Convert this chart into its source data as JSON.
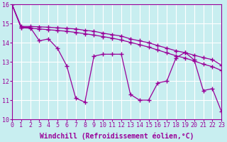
{
  "title": "",
  "xlabel": "Windchill (Refroidissement éolien,°C)",
  "ylabel": "",
  "bg_color": "#c8eef0",
  "grid_color": "#ffffff",
  "line_color": "#990099",
  "xlim": [
    0,
    23
  ],
  "ylim": [
    10,
    16
  ],
  "yticks": [
    10,
    11,
    12,
    13,
    14,
    15,
    16
  ],
  "xticks": [
    0,
    1,
    2,
    3,
    4,
    5,
    6,
    7,
    8,
    9,
    10,
    11,
    12,
    13,
    14,
    15,
    16,
    17,
    18,
    19,
    20,
    21,
    22,
    23
  ],
  "series1_x": [
    0,
    1,
    2,
    3,
    4,
    5,
    6,
    7,
    8,
    9,
    10,
    11,
    12,
    13,
    14,
    15,
    16,
    17,
    18,
    19,
    20,
    21,
    22,
    23
  ],
  "series1_y": [
    16.0,
    14.8,
    14.8,
    14.1,
    14.2,
    13.7,
    12.8,
    11.1,
    10.9,
    13.3,
    13.4,
    13.4,
    13.4,
    11.3,
    11.0,
    11.0,
    11.9,
    12.0,
    13.2,
    13.5,
    13.1,
    11.5,
    11.6,
    10.4
  ],
  "series2_x": [
    0,
    1,
    2,
    3,
    4,
    5,
    6,
    7,
    8,
    9,
    10,
    11,
    12,
    13,
    14,
    15,
    16,
    17,
    18,
    19,
    20,
    21,
    22,
    23
  ],
  "series2_y": [
    16.0,
    14.85,
    14.85,
    14.83,
    14.81,
    14.78,
    14.75,
    14.72,
    14.65,
    14.6,
    14.5,
    14.42,
    14.35,
    14.2,
    14.1,
    14.0,
    13.85,
    13.72,
    13.58,
    13.48,
    13.35,
    13.22,
    13.12,
    12.82
  ],
  "series3_x": [
    0,
    1,
    2,
    3,
    4,
    5,
    6,
    7,
    8,
    9,
    10,
    11,
    12,
    13,
    14,
    15,
    16,
    17,
    18,
    19,
    20,
    21,
    22,
    23
  ],
  "series3_y": [
    16.0,
    14.78,
    14.76,
    14.72,
    14.68,
    14.64,
    14.6,
    14.54,
    14.47,
    14.4,
    14.32,
    14.24,
    14.14,
    14.02,
    13.9,
    13.77,
    13.62,
    13.47,
    13.32,
    13.2,
    13.05,
    12.88,
    12.75,
    12.55
  ],
  "marker": "+",
  "markersize": 4,
  "linewidth": 0.9,
  "xlabel_color": "#990099",
  "tick_color": "#990099",
  "spine_color": "#990099",
  "xlabel_fontsize": 7,
  "tick_fontsize": 6.0
}
